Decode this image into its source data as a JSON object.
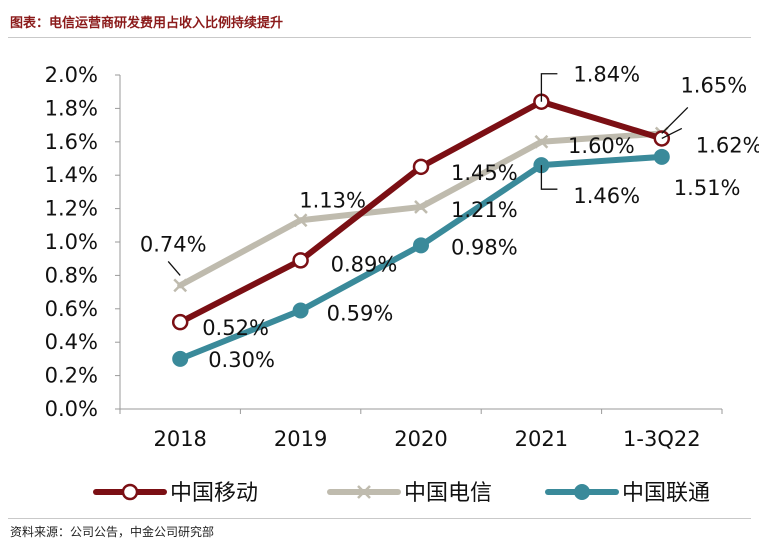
{
  "title": "图表：电信运营商研发费用占收入比例持续提升",
  "source": "资料来源：公司公告，中金公司研究部",
  "chart_data": {
    "type": "line",
    "title": "图表：电信运营商研发费用占收入比例持续提升",
    "xlabel": "",
    "ylabel": "",
    "categories": [
      "2018",
      "2019",
      "2020",
      "2021",
      "1-3Q22"
    ],
    "ylim": [
      0,
      2.0
    ],
    "yticks": [
      "0.0%",
      "0.2%",
      "0.4%",
      "0.6%",
      "0.8%",
      "1.0%",
      "1.2%",
      "1.4%",
      "1.6%",
      "1.8%",
      "2.0%"
    ],
    "grid": false,
    "legend_position": "bottom",
    "series": [
      {
        "name": "中国移动",
        "color": "#7B0F14",
        "marker": "open-circle",
        "values": [
          0.52,
          0.89,
          1.45,
          1.84,
          1.62
        ],
        "labels": [
          "0.52%",
          "0.89%",
          "1.45%",
          "1.84%",
          "1.62%"
        ]
      },
      {
        "name": "中国电信",
        "color": "#BFBBAE",
        "marker": "x",
        "values": [
          0.74,
          1.13,
          1.21,
          1.6,
          1.65
        ],
        "labels": [
          "0.74%",
          "1.13%",
          "1.21%",
          "1.60%",
          "1.65%"
        ]
      },
      {
        "name": "中国联通",
        "color": "#3A8A9A",
        "marker": "filled-circle",
        "values": [
          0.3,
          0.59,
          0.98,
          1.46,
          1.51
        ],
        "labels": [
          "0.30%",
          "0.59%",
          "0.98%",
          "1.46%",
          "1.51%"
        ]
      }
    ]
  }
}
